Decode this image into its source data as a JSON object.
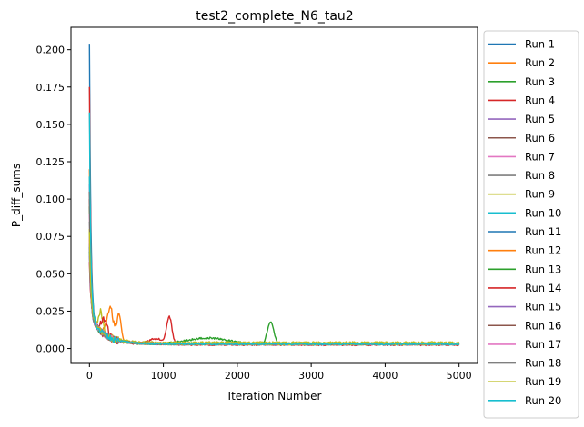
{
  "chart_data": {
    "type": "line",
    "title": "test2_complete_N6_tau2",
    "xlabel": "Iteration Number",
    "ylabel": "P_diff_sums",
    "xlim": [
      -250,
      5250
    ],
    "ylim": [
      -0.01,
      0.215
    ],
    "xticks": [
      0,
      1000,
      2000,
      3000,
      4000,
      5000
    ],
    "yticks": [
      0.0,
      0.025,
      0.05,
      0.075,
      0.1,
      0.125,
      0.15,
      0.175,
      0.2
    ],
    "ytick_labels": [
      "0.000",
      "0.025",
      "0.050",
      "0.075",
      "0.100",
      "0.125",
      "0.150",
      "0.175",
      "0.200"
    ],
    "grid": false,
    "legend_placement": "outside-right",
    "series": [
      {
        "name": "Run 1",
        "color": "#1f77b4",
        "start": 0.204,
        "tail": 0.003,
        "bumps": []
      },
      {
        "name": "Run 2",
        "color": "#ff7f0e",
        "start": 0.12,
        "tail": 0.003,
        "bumps": [
          [
            280,
            0.02,
            60
          ],
          [
            400,
            0.018,
            40
          ]
        ]
      },
      {
        "name": "Run 3",
        "color": "#2ca02c",
        "start": 0.095,
        "tail": 0.003,
        "bumps": [
          [
            1600,
            0.004,
            400
          ],
          [
            2450,
            0.015,
            60
          ]
        ]
      },
      {
        "name": "Run 4",
        "color": "#d62728",
        "start": 0.175,
        "tail": 0.0025,
        "bumps": [
          [
            1080,
            0.018,
            50
          ],
          [
            900,
            0.004,
            150
          ]
        ]
      },
      {
        "name": "Run 5",
        "color": "#9467bd",
        "start": 0.11,
        "tail": 0.003,
        "bumps": []
      },
      {
        "name": "Run 6",
        "color": "#8c564b",
        "start": 0.1,
        "tail": 0.003,
        "bumps": []
      },
      {
        "name": "Run 7",
        "color": "#e377c2",
        "start": 0.09,
        "tail": 0.003,
        "bumps": []
      },
      {
        "name": "Run 8",
        "color": "#7f7f7f",
        "start": 0.085,
        "tail": 0.003,
        "bumps": []
      },
      {
        "name": "Run 9",
        "color": "#bcbd22",
        "start": 0.08,
        "tail": 0.004,
        "bumps": [
          [
            150,
            0.012,
            40
          ]
        ]
      },
      {
        "name": "Run 10",
        "color": "#17becf",
        "start": 0.115,
        "tail": 0.003,
        "bumps": []
      },
      {
        "name": "Run 11",
        "color": "#1f77b4",
        "start": 0.07,
        "tail": 0.003,
        "bumps": []
      },
      {
        "name": "Run 12",
        "color": "#ff7f0e",
        "start": 0.073,
        "tail": 0.003,
        "bumps": []
      },
      {
        "name": "Run 13",
        "color": "#2ca02c",
        "start": 0.065,
        "tail": 0.003,
        "bumps": []
      },
      {
        "name": "Run 14",
        "color": "#d62728",
        "start": 0.058,
        "tail": 0.003,
        "bumps": [
          [
            200,
            0.01,
            60
          ]
        ]
      },
      {
        "name": "Run 15",
        "color": "#9467bd",
        "start": 0.062,
        "tail": 0.003,
        "bumps": []
      },
      {
        "name": "Run 16",
        "color": "#8c564b",
        "start": 0.105,
        "tail": 0.003,
        "bumps": []
      },
      {
        "name": "Run 17",
        "color": "#e377c2",
        "start": 0.075,
        "tail": 0.003,
        "bumps": []
      },
      {
        "name": "Run 18",
        "color": "#7f7f7f",
        "start": 0.068,
        "tail": 0.003,
        "bumps": []
      },
      {
        "name": "Run 19",
        "color": "#bcbd22",
        "start": 0.078,
        "tail": 0.003,
        "bumps": []
      },
      {
        "name": "Run 20",
        "color": "#17becf",
        "start": 0.158,
        "tail": 0.003,
        "bumps": []
      }
    ]
  }
}
